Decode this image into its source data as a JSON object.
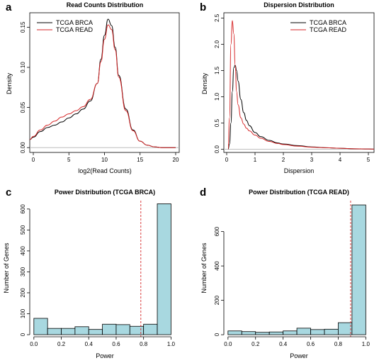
{
  "chart_data": [
    {
      "panel": "a",
      "type": "line",
      "title": "Read Counts Distribution",
      "xlabel": "log2(Read Counts)",
      "ylabel": "Density",
      "xlim": [
        -0.5,
        20.5
      ],
      "ylim": [
        -0.006,
        0.168
      ],
      "xticks": [
        0,
        5,
        10,
        15,
        20
      ],
      "yticks": [
        0.0,
        0.05,
        0.1,
        0.15
      ],
      "ytick_labels": [
        "0.00",
        "0.05",
        "0.10",
        "0.15"
      ],
      "legend": "top-left",
      "baseline": true,
      "series": [
        {
          "name": "TCGA BRCA",
          "color": "#000000",
          "x": [
            -0.5,
            0,
            1,
            2,
            3,
            4,
            5,
            6,
            7,
            8,
            9,
            9.5,
            10,
            10.5,
            11,
            11.5,
            12,
            13,
            14,
            15,
            16,
            17,
            18,
            20
          ],
          "y": [
            0.01,
            0.013,
            0.02,
            0.025,
            0.028,
            0.032,
            0.037,
            0.042,
            0.048,
            0.058,
            0.08,
            0.11,
            0.14,
            0.16,
            0.152,
            0.125,
            0.09,
            0.048,
            0.022,
            0.008,
            0.003,
            0.001,
            0.0,
            0.0
          ]
        },
        {
          "name": "TCGA READ",
          "color": "#d62728",
          "x": [
            -0.5,
            0,
            1,
            2,
            3,
            4,
            5,
            6,
            7,
            8,
            9,
            9.5,
            10,
            10.5,
            11,
            11.5,
            12,
            13,
            14,
            15,
            16,
            17,
            18,
            20
          ],
          "y": [
            0.01,
            0.014,
            0.022,
            0.028,
            0.033,
            0.038,
            0.042,
            0.046,
            0.051,
            0.06,
            0.08,
            0.107,
            0.135,
            0.153,
            0.147,
            0.122,
            0.088,
            0.046,
            0.021,
            0.008,
            0.003,
            0.001,
            0.0,
            0.0
          ]
        }
      ]
    },
    {
      "panel": "b",
      "type": "line",
      "title": "Dispersion Distribution",
      "xlabel": "Dispersion",
      "ylabel": "Density",
      "xlim": [
        -0.1,
        5.2
      ],
      "ylim": [
        -0.06,
        2.6
      ],
      "xticks": [
        0,
        1,
        2,
        3,
        4,
        5
      ],
      "yticks": [
        0.0,
        0.5,
        1.0,
        1.5,
        2.0,
        2.5
      ],
      "ytick_labels": [
        "0.0",
        "0.5",
        "1.0",
        "1.5",
        "2.0",
        "2.5"
      ],
      "legend": "top-right",
      "baseline": true,
      "series": [
        {
          "name": "TCGA BRCA",
          "color": "#000000",
          "x": [
            0.05,
            0.1,
            0.15,
            0.2,
            0.25,
            0.3,
            0.35,
            0.4,
            0.5,
            0.6,
            0.7,
            0.8,
            1.0,
            1.2,
            1.5,
            1.8,
            2.0,
            2.5,
            3.0,
            3.5,
            4.0,
            4.5,
            5.0,
            5.2
          ],
          "y": [
            0.0,
            0.1,
            0.5,
            1.1,
            1.55,
            1.6,
            1.5,
            1.3,
            0.95,
            0.7,
            0.55,
            0.45,
            0.32,
            0.24,
            0.17,
            0.12,
            0.1,
            0.07,
            0.045,
            0.03,
            0.02,
            0.01,
            0.005,
            0.003
          ]
        },
        {
          "name": "TCGA READ",
          "color": "#d62728",
          "x": [
            0.05,
            0.1,
            0.15,
            0.2,
            0.25,
            0.3,
            0.35,
            0.4,
            0.5,
            0.6,
            0.7,
            0.8,
            1.0,
            1.2,
            1.5,
            1.8,
            2.0,
            2.5,
            3.0,
            3.5,
            4.0,
            4.5,
            5.0,
            5.2
          ],
          "y": [
            0.0,
            0.6,
            2.0,
            2.45,
            2.2,
            1.6,
            1.1,
            0.85,
            0.6,
            0.48,
            0.4,
            0.35,
            0.27,
            0.21,
            0.15,
            0.11,
            0.09,
            0.06,
            0.04,
            0.03,
            0.02,
            0.01,
            0.005,
            0.003
          ]
        }
      ]
    },
    {
      "panel": "c",
      "type": "bar",
      "title": "Power Distribution (TCGA BRCA)",
      "xlabel": "Power",
      "ylabel": "Number of Genes",
      "xlim": [
        -0.03,
        1.06
      ],
      "ylim": [
        -10,
        640
      ],
      "xticks": [
        0.0,
        0.2,
        0.4,
        0.6,
        0.8,
        1.0
      ],
      "xtick_labels": [
        "0.0",
        "0.2",
        "0.4",
        "0.6",
        "0.8",
        "1.0"
      ],
      "yticks": [
        0,
        100,
        200,
        300,
        400,
        500,
        600
      ],
      "ytick_labels": [
        "0",
        "100",
        "200",
        "300",
        "400",
        "500",
        "600"
      ],
      "bin_edges": [
        0.0,
        0.1,
        0.2,
        0.3,
        0.4,
        0.5,
        0.6,
        0.7,
        0.8,
        0.9,
        1.0
      ],
      "values": [
        78,
        30,
        30,
        38,
        25,
        50,
        48,
        40,
        50,
        625
      ],
      "bar_color": "#a8d8e0",
      "threshold": 0.78,
      "threshold_color": "#d62728"
    },
    {
      "panel": "d",
      "type": "bar",
      "title": "Power Distribution (TCGA READ)",
      "xlabel": "Power",
      "ylabel": "Number of Genes",
      "xlim": [
        -0.03,
        1.06
      ],
      "ylim": [
        -12,
        780
      ],
      "xticks": [
        0.0,
        0.2,
        0.4,
        0.6,
        0.8,
        1.0
      ],
      "xtick_labels": [
        "0.0",
        "0.2",
        "0.4",
        "0.6",
        "0.8",
        "1.0"
      ],
      "yticks": [
        0,
        200,
        400,
        600
      ],
      "ytick_labels": [
        "0",
        "200",
        "400",
        "600"
      ],
      "bin_edges": [
        0.0,
        0.1,
        0.2,
        0.3,
        0.4,
        0.5,
        0.6,
        0.7,
        0.8,
        0.9,
        1.0
      ],
      "values": [
        22,
        18,
        14,
        16,
        22,
        38,
        30,
        32,
        70,
        755
      ],
      "bar_color": "#a8d8e0",
      "threshold": 0.89,
      "threshold_color": "#d62728"
    }
  ]
}
